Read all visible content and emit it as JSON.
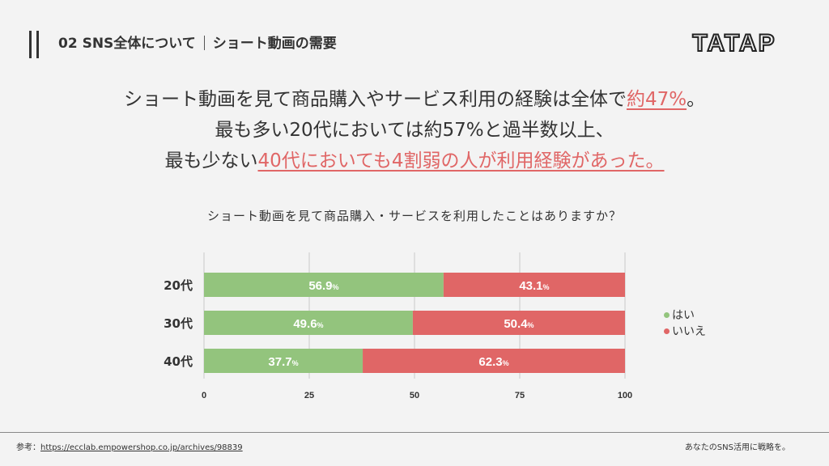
{
  "header": {
    "section_title_left": "02 SNS全体について",
    "section_title_right": "ショート動画の需要",
    "logo_text": "TATAP"
  },
  "headline": {
    "line1_pre": "ショート動画を見て商品購入やサービス利用の経験は全体で",
    "line1_hl": "約47%",
    "line1_post": "。",
    "line2": "最も多い20代においては約57%と過半数以上、",
    "line3_pre": "最も少ない",
    "line3_hl": "40代においても4割弱の人が利用経験があった。"
  },
  "chart_data": {
    "type": "bar",
    "orientation": "horizontal",
    "stacked": true,
    "title": "ショート動画を見て商品購入・サービスを利用したことはありますか？",
    "categories": [
      "20代",
      "30代",
      "40代"
    ],
    "series": [
      {
        "name": "はい",
        "color": "#93c47d",
        "values": [
          56.9,
          49.6,
          37.7
        ]
      },
      {
        "name": "いいえ",
        "color": "#e06666",
        "values": [
          43.1,
          50.4,
          62.3
        ]
      }
    ],
    "value_suffix": "%",
    "xlim": [
      0,
      100
    ],
    "xticks": [
      0,
      25,
      50,
      75,
      100
    ],
    "grid": true,
    "legend_position": "right"
  },
  "footer": {
    "source_label": "参考：",
    "source_url": "https://ecclab.empowershop.co.jp/archives/98839",
    "tagline": "あなたのSNS活用に戦略を。"
  }
}
